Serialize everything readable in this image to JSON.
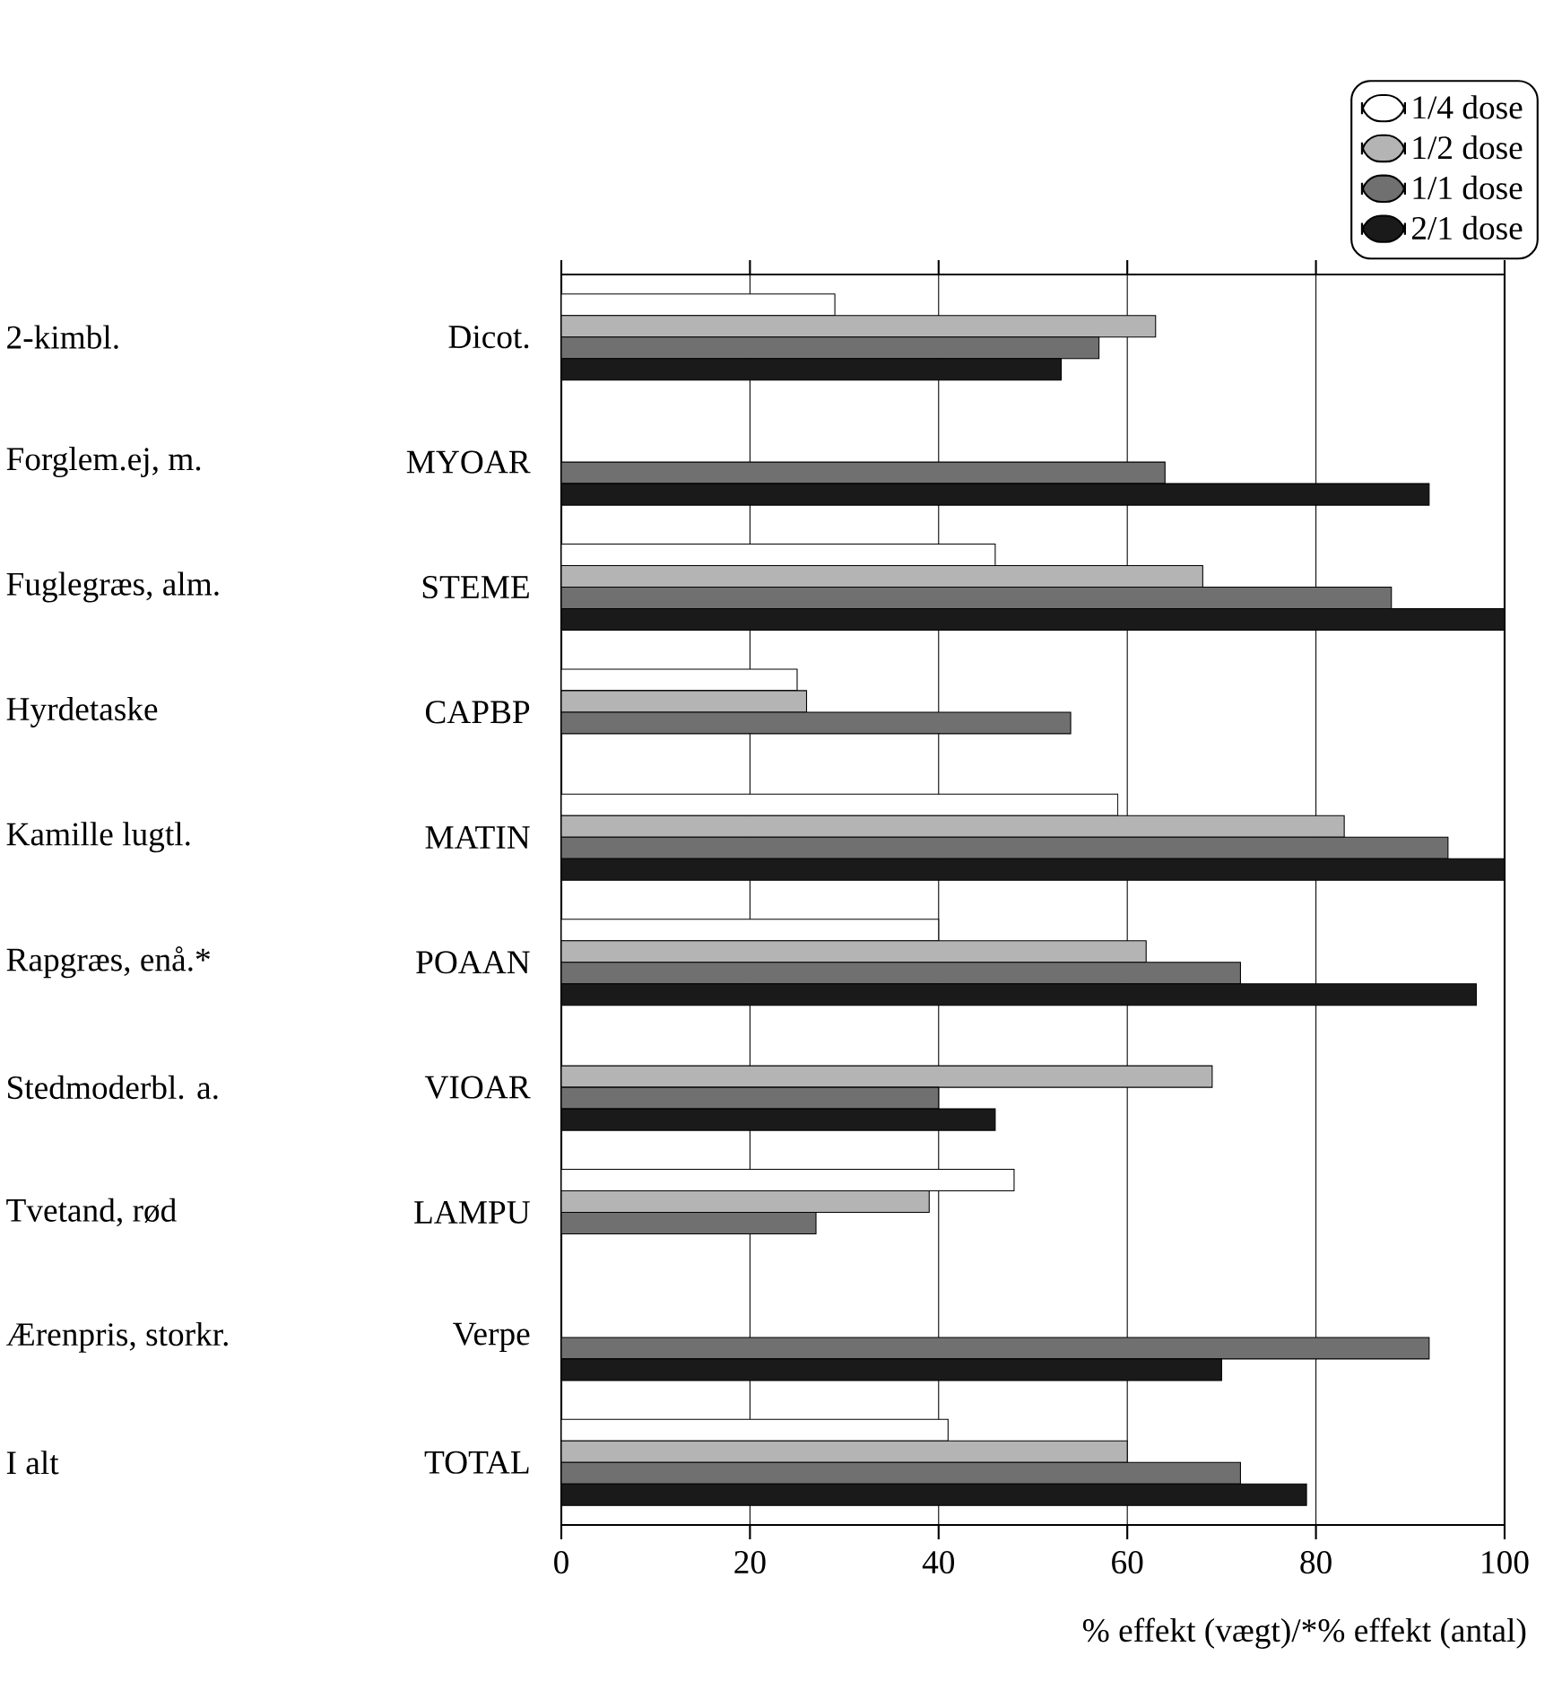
{
  "chart_data": {
    "type": "bar",
    "orientation": "horizontal",
    "categories": [
      "Dicot.",
      "MYOAR",
      "STEME",
      "CAPBP",
      "MATIN",
      "POAAN",
      "VIOAR",
      "LAMPU",
      "Verpe",
      "TOTAL"
    ],
    "series": [
      {
        "name": "1/4 dose",
        "color": "#ffffff",
        "values": [
          29,
          null,
          46,
          25,
          59,
          40,
          null,
          48,
          null,
          41
        ]
      },
      {
        "name": "1/2 dose",
        "color": "#b4b4b4",
        "values": [
          63,
          null,
          68,
          26,
          83,
          62,
          69,
          39,
          null,
          60
        ]
      },
      {
        "name": "1/1 dose",
        "color": "#707070",
        "values": [
          57,
          64,
          88,
          54,
          94,
          72,
          40,
          27,
          92,
          72
        ]
      },
      {
        "name": "2/1 dose",
        "color": "#1a1a1a",
        "values": [
          53,
          92,
          100,
          null,
          100,
          97,
          46,
          null,
          70,
          79
        ]
      }
    ],
    "xlim": [
      0,
      100
    ],
    "xticks": [
      0,
      20,
      40,
      60,
      80,
      100
    ],
    "xlabel": "% effekt (vægt)/*% effekt (antal)",
    "grid": "x",
    "legend": "top right",
    "annotations": [
      "2-kimbl.",
      "Forglem.ej, m.",
      "Fuglegræs, alm.",
      "Hyrdetaske",
      "Kamille lugtl.",
      "Rapgræs, enå.*",
      "Stedmoderbl. a.",
      "Tvetand, rød",
      "Ærenpris, storkr.",
      "I alt"
    ]
  }
}
